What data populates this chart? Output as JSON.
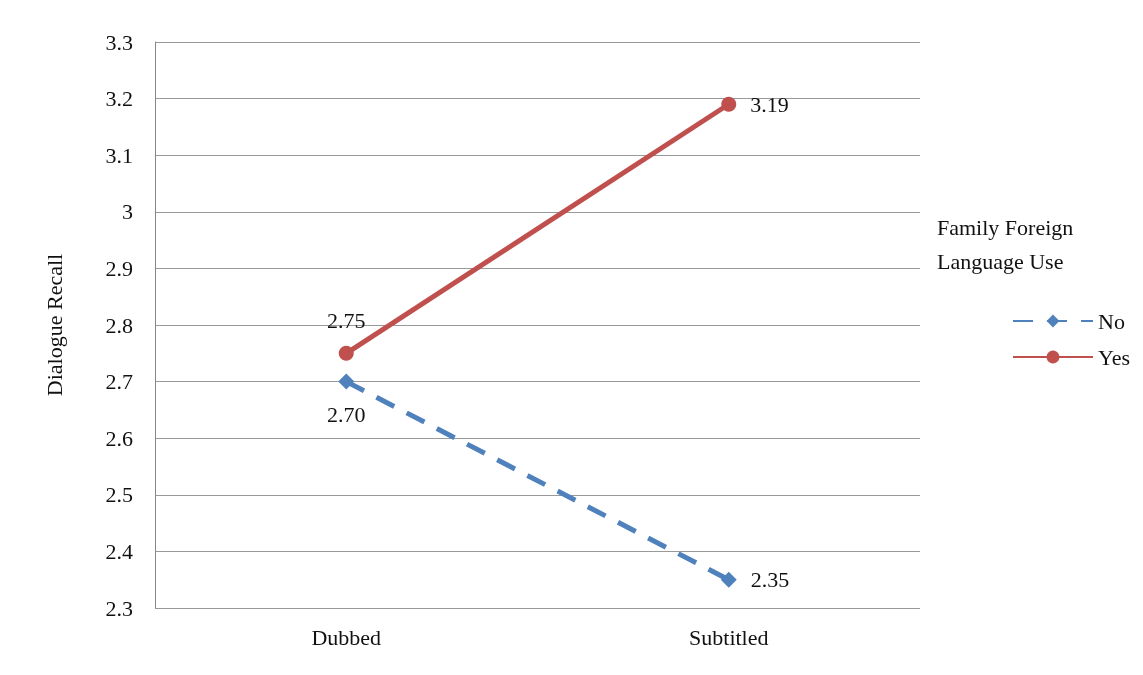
{
  "chart_data": {
    "type": "line",
    "ylabel": "Dialogue Recall",
    "legend_title": "Family Foreign Language Use",
    "categories": [
      "Dubbed",
      "Subtitled"
    ],
    "series": [
      {
        "name": "No",
        "color": "#4f81bd",
        "values": [
          2.7,
          2.35
        ],
        "value_labels": [
          "2.70",
          "2.35"
        ],
        "marker": "diamond",
        "line_style": "dashed"
      },
      {
        "name": "Yes",
        "color": "#c0504d",
        "values": [
          2.75,
          3.19
        ],
        "value_labels": [
          "2.75",
          "3.19"
        ],
        "marker": "circle",
        "line_style": "solid"
      }
    ],
    "ylim": [
      2.3,
      3.3
    ],
    "yticks": [
      2.3,
      2.4,
      2.5,
      2.6,
      2.7,
      2.8,
      2.9,
      3,
      3.1,
      3.2,
      3.3
    ],
    "grid": "y",
    "legend": "right"
  }
}
